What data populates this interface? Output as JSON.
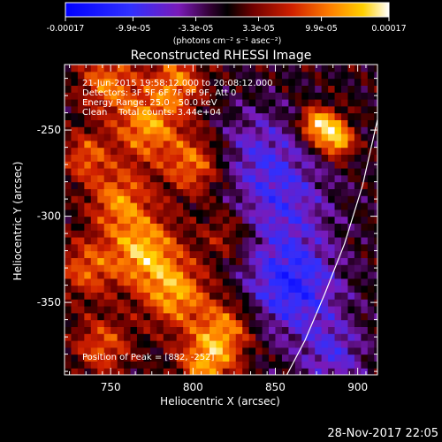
{
  "chart_data": {
    "type": "heatmap",
    "title": "Reconstructed RHESSI Image",
    "xlabel": "Heliocentric X (arcsec)",
    "ylabel": "Heliocentric Y (arcsec)",
    "xlim": [
      722,
      912
    ],
    "ylim": [
      -392,
      -212
    ],
    "x_ticks": [
      750,
      800,
      850,
      900
    ],
    "y_ticks": [
      -250,
      -300,
      -350
    ],
    "colorbar": {
      "label": "(photons cm⁻² s⁻¹ asec⁻²)",
      "range": [
        -0.00017,
        0.00017
      ],
      "tick_values": [
        -0.00017,
        -9.9e-05,
        -3.3e-05,
        3.3e-05,
        9.9e-05,
        0.00017
      ],
      "tick_labels": [
        "-0.00017",
        "-9.9e-05",
        "-3.3e-05",
        "3.3e-05",
        "9.9e-05",
        "0.00017"
      ]
    },
    "annotations": {
      "time_range": "21-Jun-2015 19:58:12.000 to 20:08:12.000",
      "detectors": "Detectors: 3F 5F 6F 7F 8F 9F, Att 0",
      "energy_range": "Energy Range: 25.0 - 50.0 keV",
      "method_counts": "Clean    Total counts: 3.44e+04",
      "peak_position": "Position of Peak = [882, -252]"
    },
    "peak": [
      882,
      -252
    ],
    "limb_arc": [
      [
        857,
        -392
      ],
      [
        868,
        -372
      ],
      [
        880,
        -345
      ],
      [
        892,
        -316
      ],
      [
        903,
        -282
      ],
      [
        912,
        -244
      ]
    ],
    "intensity_blobs": [
      {
        "x": 882,
        "y": -250,
        "amp": 1.0,
        "radius": 8
      },
      {
        "x": 872,
        "y": -245,
        "amp": 0.6,
        "radius": 6
      },
      {
        "x": 890,
        "y": -258,
        "amp": 0.6,
        "radius": 6
      },
      {
        "x": 772,
        "y": -248,
        "amp": 0.8,
        "radius": 14
      },
      {
        "x": 748,
        "y": -222,
        "amp": 0.7,
        "radius": 12
      },
      {
        "x": 790,
        "y": -222,
        "amp": 0.7,
        "radius": 12
      },
      {
        "x": 800,
        "y": -270,
        "amp": 0.7,
        "radius": 12
      },
      {
        "x": 755,
        "y": -290,
        "amp": 0.7,
        "radius": 13
      },
      {
        "x": 770,
        "y": -320,
        "amp": 0.9,
        "radius": 15
      },
      {
        "x": 735,
        "y": -330,
        "amp": 0.6,
        "radius": 12
      },
      {
        "x": 790,
        "y": -345,
        "amp": 0.8,
        "radius": 14
      },
      {
        "x": 820,
        "y": -365,
        "amp": 0.7,
        "radius": 12
      },
      {
        "x": 808,
        "y": -385,
        "amp": 0.8,
        "radius": 12
      },
      {
        "x": 745,
        "y": -375,
        "amp": 0.6,
        "radius": 12
      },
      {
        "x": 735,
        "y": -265,
        "amp": 0.6,
        "radius": 10
      },
      {
        "x": 820,
        "y": -310,
        "amp": 0.4,
        "radius": 10
      },
      {
        "x": 860,
        "y": -340,
        "amp": -0.8,
        "radius": 20
      },
      {
        "x": 855,
        "y": -290,
        "amp": -0.5,
        "radius": 20
      },
      {
        "x": 885,
        "y": -380,
        "amp": -0.5,
        "radius": 14
      },
      {
        "x": 840,
        "y": -260,
        "amp": -0.4,
        "radius": 18
      }
    ]
  },
  "footer": {
    "date": "28-Nov-2017 22:05"
  }
}
